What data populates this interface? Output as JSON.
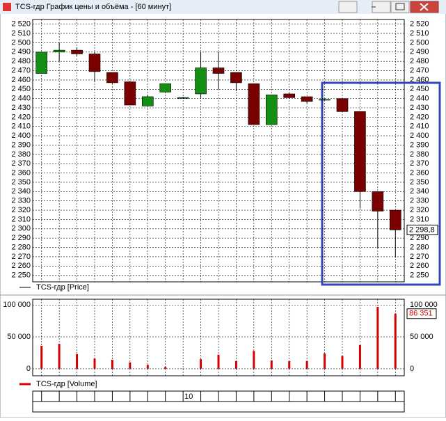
{
  "window": {
    "title": "TCS-гдр График цены и объёма - [60 минут]"
  },
  "chart_data": [
    {
      "type": "candlestick",
      "legend": "TCS-гдр [Price]",
      "up_color": "#138f13",
      "down_color": "#7b0000",
      "open": [
        2467,
        2490,
        2492,
        2488,
        2468,
        2458,
        2432,
        2447,
        2441,
        2445,
        2473,
        2468,
        2456,
        2412,
        2445,
        2442,
        2439,
        2440,
        2426,
        2340,
        2320
      ],
      "high": [
        2490,
        2500,
        2495,
        2490,
        2468,
        2458,
        2444,
        2456,
        2442,
        2490,
        2490,
        2468,
        2456,
        2444,
        2446,
        2442,
        2440,
        2440,
        2426,
        2340,
        2320
      ],
      "low": [
        2467,
        2480,
        2486,
        2458,
        2456,
        2433,
        2432,
        2447,
        2440,
        2441,
        2450,
        2448,
        2412,
        2412,
        2440,
        2435,
        2438,
        2426,
        2322,
        2279,
        2269
      ],
      "close": [
        2490,
        2492,
        2488,
        2469,
        2457,
        2433,
        2442,
        2456,
        2441,
        2473,
        2467,
        2457,
        2412,
        2444,
        2441,
        2437,
        2439,
        2426,
        2340,
        2319,
        2298.8
      ],
      "close_labels": [
        null,
        null,
        null,
        null,
        null,
        null,
        null,
        null,
        null,
        null,
        null,
        null,
        null,
        null,
        null,
        null,
        null,
        null,
        null,
        null,
        "2 298,8"
      ],
      "ylim": [
        2243,
        2525
      ],
      "yticks": [
        {
          "value": 2250,
          "label": "2 250"
        },
        {
          "value": 2260,
          "label": "2 260"
        },
        {
          "value": 2270,
          "label": "2 270"
        },
        {
          "value": 2280,
          "label": "2 280"
        },
        {
          "value": 2290,
          "label": "2 290"
        },
        {
          "value": 2300,
          "label": "2 300"
        },
        {
          "value": 2310,
          "label": "2 310"
        },
        {
          "value": 2320,
          "label": "2 320"
        },
        {
          "value": 2330,
          "label": "2 330"
        },
        {
          "value": 2340,
          "label": "2 340"
        },
        {
          "value": 2350,
          "label": "2 350"
        },
        {
          "value": 2360,
          "label": "2 360"
        },
        {
          "value": 2370,
          "label": "2 370"
        },
        {
          "value": 2380,
          "label": "2 380"
        },
        {
          "value": 2390,
          "label": "2 390"
        },
        {
          "value": 2400,
          "label": "2 400"
        },
        {
          "value": 2410,
          "label": "2 410"
        },
        {
          "value": 2420,
          "label": "2 420"
        },
        {
          "value": 2430,
          "label": "2 430"
        },
        {
          "value": 2440,
          "label": "2 440"
        },
        {
          "value": 2450,
          "label": "2 450"
        },
        {
          "value": 2460,
          "label": "2 460"
        },
        {
          "value": 2470,
          "label": "2 470"
        },
        {
          "value": 2480,
          "label": "2 480"
        },
        {
          "value": 2490,
          "label": "2 490"
        },
        {
          "value": 2500,
          "label": "2 500"
        },
        {
          "value": 2510,
          "label": "2 510"
        },
        {
          "value": 2520,
          "label": "2 520"
        }
      ],
      "grid": true
    },
    {
      "type": "bar",
      "legend": "TCS-гдр [Volume]",
      "color": "#d40000",
      "categories": [
        null,
        null,
        null,
        null,
        null,
        null,
        null,
        null,
        "10",
        null,
        null,
        null,
        null,
        null,
        null,
        null,
        null,
        null,
        null,
        null,
        null
      ],
      "values": [
        36000,
        39000,
        23000,
        16000,
        14000,
        10000,
        6000,
        3000,
        500,
        15000,
        22000,
        12000,
        28000,
        13000,
        12000,
        12000,
        24000,
        20000,
        37000,
        97000,
        86351
      ],
      "value_labels": [
        null,
        null,
        null,
        null,
        null,
        null,
        null,
        null,
        null,
        null,
        null,
        null,
        null,
        null,
        null,
        null,
        null,
        null,
        null,
        null,
        "86 351"
      ],
      "ylim": [
        -11000,
        109000
      ],
      "yticks": [
        0,
        {
          "value": 50000,
          "label": "50 000"
        },
        {
          "value": 100000,
          "label": "100 000"
        }
      ],
      "grid": true
    }
  ]
}
